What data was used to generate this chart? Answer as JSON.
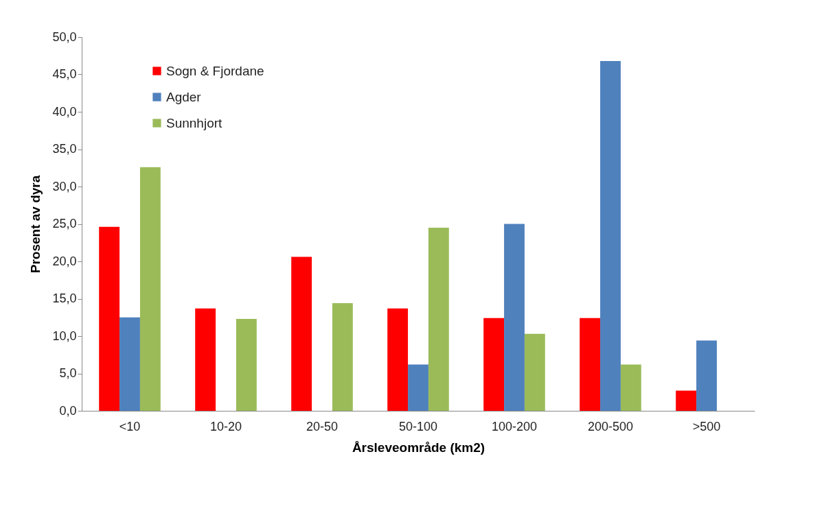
{
  "chart_data": {
    "type": "bar",
    "xlabel": "Årsleveområde (km2)",
    "ylabel": "Prosent av dyra",
    "categories": [
      "<10",
      "10-20",
      "20-50",
      "50-100",
      "100-200",
      "200-500",
      ">500"
    ],
    "series": [
      {
        "name": "Sogn & Fjordane",
        "color": "#ff0000",
        "values": [
          24.6,
          13.7,
          20.6,
          13.7,
          12.4,
          12.4,
          2.7
        ]
      },
      {
        "name": "Agder",
        "color": "#4f81bd",
        "values": [
          12.5,
          null,
          null,
          6.2,
          25.0,
          46.8,
          9.4
        ]
      },
      {
        "name": "Sunnhjort",
        "color": "#9bbb59",
        "values": [
          32.6,
          12.3,
          14.4,
          24.5,
          10.3,
          6.2,
          null
        ]
      }
    ],
    "ylim": [
      0,
      50
    ],
    "yticks": [
      {
        "value": 0,
        "label": "0,0"
      },
      {
        "value": 5,
        "label": "5,0"
      },
      {
        "value": 10,
        "label": "10,0"
      },
      {
        "value": 15,
        "label": "15,0"
      },
      {
        "value": 20,
        "label": "20,0"
      },
      {
        "value": 25,
        "label": "25,0"
      },
      {
        "value": 30,
        "label": "30,0"
      },
      {
        "value": 35,
        "label": "35,0"
      },
      {
        "value": 40,
        "label": "40,0"
      },
      {
        "value": 45,
        "label": "45,0"
      },
      {
        "value": 50,
        "label": "50,0"
      }
    ],
    "grid": false,
    "legend": "top left"
  }
}
